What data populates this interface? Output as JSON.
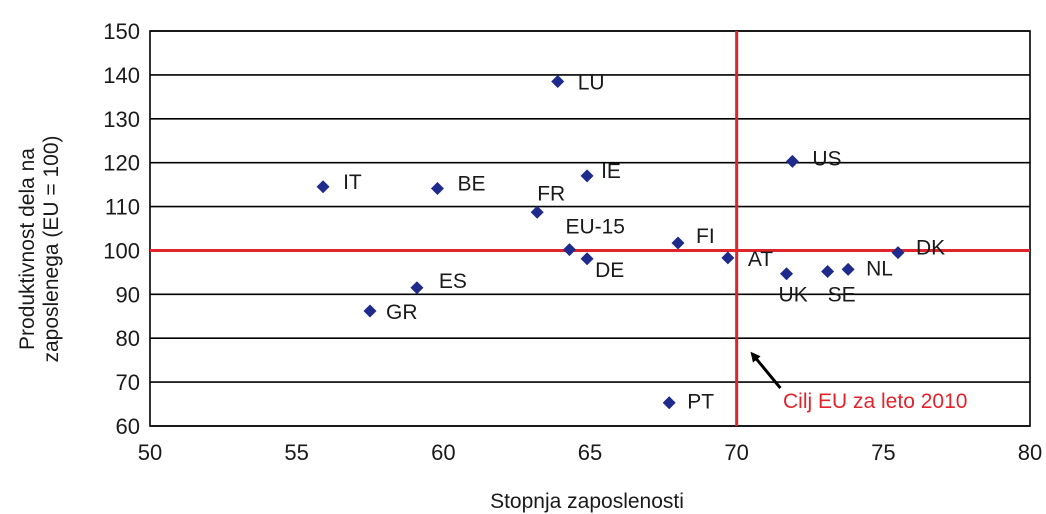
{
  "chart_data": {
    "type": "scatter",
    "xlabel": "Stopnja zaposlenosti",
    "ylabel_lines": [
      "Produktivnost dela na",
      "zaposlenega (EU = 100)"
    ],
    "xlim": [
      50,
      80
    ],
    "ylim": [
      60,
      150
    ],
    "x_ticks": [
      50,
      55,
      60,
      65,
      70,
      75,
      80
    ],
    "y_ticks": [
      60,
      70,
      80,
      90,
      100,
      110,
      120,
      130,
      140,
      150
    ],
    "grid": "horizontal",
    "points": [
      {
        "label": "LU",
        "x": 63.9,
        "y": 138.5
      },
      {
        "label": "US",
        "x": 71.9,
        "y": 120.3
      },
      {
        "label": "IT",
        "x": 55.9,
        "y": 114.5
      },
      {
        "label": "BE",
        "x": 59.8,
        "y": 114.1
      },
      {
        "label": "IE",
        "x": 64.9,
        "y": 117.0
      },
      {
        "label": "FR",
        "x": 63.2,
        "y": 108.7
      },
      {
        "label": "EU-15",
        "x": 64.3,
        "y": 100.2
      },
      {
        "label": "FI",
        "x": 68.0,
        "y": 101.7
      },
      {
        "label": "AT",
        "x": 69.7,
        "y": 98.3
      },
      {
        "label": "DE",
        "x": 64.9,
        "y": 98.1
      },
      {
        "label": "DK",
        "x": 75.5,
        "y": 99.5
      },
      {
        "label": "UK",
        "x": 71.7,
        "y": 94.7
      },
      {
        "label": "SE",
        "x": 73.1,
        "y": 95.2
      },
      {
        "label": "NL",
        "x": 73.8,
        "y": 95.7
      },
      {
        "label": "ES",
        "x": 59.1,
        "y": 91.5
      },
      {
        "label": "GR",
        "x": 57.5,
        "y": 86.2
      },
      {
        "label": "PT",
        "x": 67.7,
        "y": 65.3
      }
    ],
    "reference_lines": {
      "x": 70,
      "y": 100,
      "color": "#e0242c"
    },
    "annotation": {
      "text": "Cilj EU za leto 2010",
      "color": "#e0242c",
      "arrow_to": {
        "x": 70.4,
        "y": 77.3
      }
    },
    "marker_color": "#1e2a8c",
    "grid_color": "#000000"
  }
}
